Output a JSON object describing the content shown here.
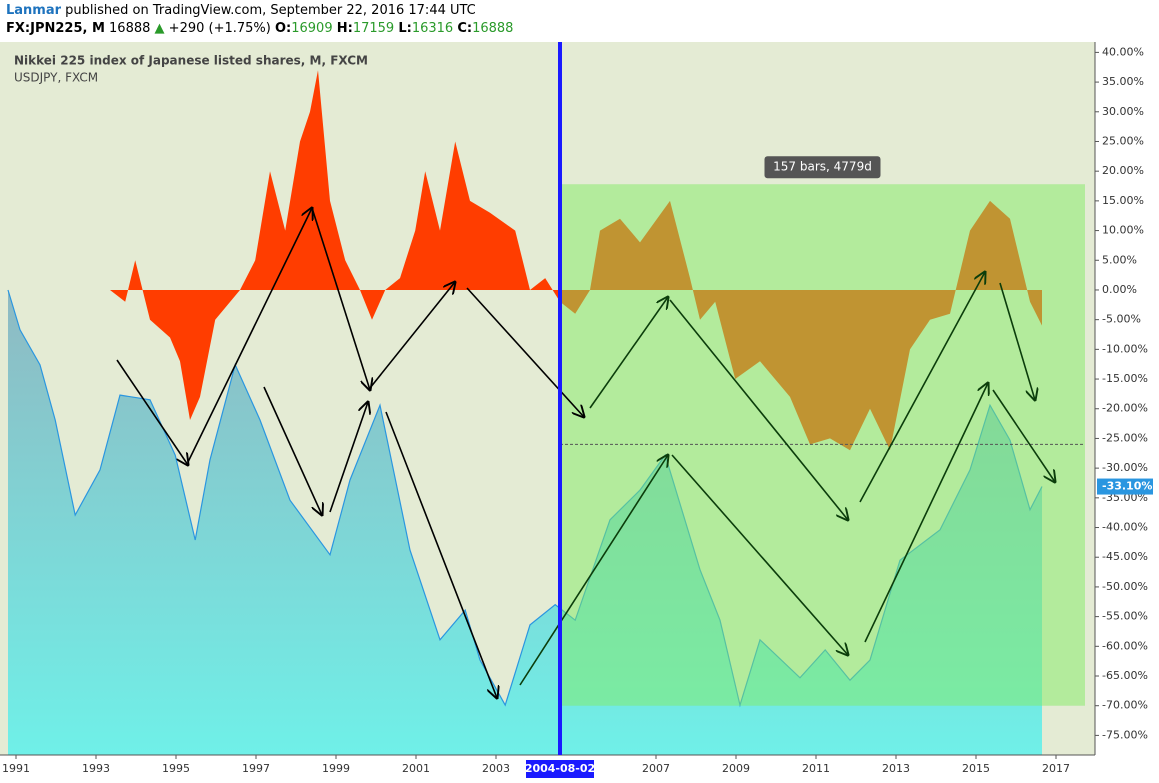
{
  "header": {
    "author": "Lanmar",
    "published": " published on TradingView.com, September 22, 2016 17:44 UTC",
    "symbol": "FX:JPN225, M",
    "last": "16888",
    "change": "+290 (+1.75%)",
    "open_label": "O:",
    "open": "16909",
    "high_label": "H:",
    "high": "17159",
    "low_label": "L:",
    "low": "16316",
    "close_label": "C:",
    "close": "16888"
  },
  "chart_data": {
    "type": "area",
    "xlim": [
      1990.6,
      2017.975
    ],
    "ylim": [
      -78.3,
      41.75
    ],
    "xticks": [
      1991,
      1993,
      1995,
      1997,
      1999,
      2001,
      2003,
      2007,
      2009,
      2011,
      2013,
      2015,
      2017
    ],
    "yticks": [
      {
        "value": 40,
        "label": "40.00%"
      },
      {
        "value": 35,
        "label": "35.00%"
      },
      {
        "value": 30,
        "label": "30.00%"
      },
      {
        "value": 25,
        "label": "25.00%"
      },
      {
        "value": 20,
        "label": "20.00%"
      },
      {
        "value": 15,
        "label": "15.00%"
      },
      {
        "value": 10,
        "label": "10.00%"
      },
      {
        "value": 5,
        "label": "5.00%"
      },
      {
        "value": 0,
        "label": "0.00%"
      },
      {
        "value": -5,
        "label": "-5.00%"
      },
      {
        "value": -10,
        "label": "-10.00%"
      },
      {
        "value": -15,
        "label": "-15.00%"
      },
      {
        "value": -20,
        "label": "-20.00%"
      },
      {
        "value": -25,
        "label": "-25.00%"
      },
      {
        "value": -30,
        "label": "-30.00%"
      },
      {
        "value": -35,
        "label": "-35.00%"
      },
      {
        "value": -40,
        "label": "-40.00%"
      },
      {
        "value": -45,
        "label": "-45.00%"
      },
      {
        "value": -50,
        "label": "-50.00%"
      },
      {
        "value": -55,
        "label": "-55.00%"
      },
      {
        "value": -60,
        "label": "-60.00%"
      },
      {
        "value": -65,
        "label": "-65.00%"
      },
      {
        "value": -70,
        "label": "-70.00%"
      },
      {
        "value": -75,
        "label": "-75.00%"
      }
    ],
    "series": [
      {
        "name": "Nikkei 225 index of Japanese listed shares, M, FXCM",
        "color": "#2a96e0",
        "x": [
          1990.8,
          1991.1,
          1991.6,
          1991.98,
          1992.48,
          1993.1,
          1993.6,
          1994.35,
          1994.98,
          1995.48,
          1995.85,
          1996.48,
          1997.1,
          1997.85,
          1998.85,
          1999.35,
          2000.1,
          2000.85,
          2001.6,
          2002.23,
          2002.6,
          2003.23,
          2003.85,
          2004.48,
          2004.98,
          2005.85,
          2006.6,
          2007.23,
          2008.1,
          2008.6,
          2009.1,
          2009.6,
          2010.6,
          2011.23,
          2011.85,
          2012.35,
          2013.1,
          2014.1,
          2014.85,
          2015.35,
          2015.85,
          2016.35,
          2016.65
        ],
        "values": [
          0,
          -6.7,
          -12.6,
          -21.9,
          -37.9,
          -30.3,
          -17.7,
          -18.5,
          -27.8,
          -42.1,
          -28.6,
          -12.6,
          -21.9,
          -35.4,
          -44.6,
          -32,
          -19.4,
          -43.8,
          -58.9,
          -53.9,
          -62.3,
          -69.9,
          -56.4,
          -53,
          -55.6,
          -38.7,
          -33.7,
          -27.8,
          -47.1,
          -55.6,
          -69.9,
          -58.9,
          -65.3,
          -60.6,
          -65.7,
          -62.3,
          -45.5,
          -40.4,
          -30.3,
          -19.4,
          -25.3,
          -37,
          -33.1
        ]
      },
      {
        "name": "USDJPY, FXCM",
        "color": "#ff3d00",
        "x": [
          1993.35,
          1993.73,
          1993.98,
          1994.35,
          1994.85,
          1995.1,
          1995.35,
          1995.6,
          1995.98,
          1996.6,
          1996.98,
          1997.35,
          1997.73,
          1998.1,
          1998.35,
          1998.55,
          1998.85,
          1999.23,
          1999.6,
          1999.9,
          2000.23,
          2000.6,
          2000.98,
          2001.23,
          2001.6,
          2001.98,
          2002.35,
          2002.85,
          2003.48,
          2003.85,
          2004.23,
          2004.6,
          2004.98,
          2005.35,
          2005.6,
          2006.1,
          2006.6,
          2007.35,
          2007.85,
          2008.1,
          2008.48,
          2008.98,
          2009.6,
          2010.35,
          2010.85,
          2011.35,
          2011.85,
          2012.35,
          2012.85,
          2013.35,
          2013.85,
          2014.35,
          2014.85,
          2015.35,
          2015.85,
          2016.1,
          2016.35,
          2016.65
        ],
        "values": [
          0,
          -2,
          5,
          -5,
          -8,
          -12,
          -21.9,
          -18,
          -5,
          0,
          5,
          20,
          10,
          25,
          30,
          37,
          15,
          5,
          0,
          -5,
          0,
          2,
          10,
          20,
          10,
          25,
          15,
          13,
          10,
          0,
          2,
          -2,
          -4,
          0,
          10,
          12,
          8,
          15,
          2,
          -5,
          -2,
          -15,
          -12,
          -18,
          -26,
          -25,
          -27,
          -20,
          -27,
          -10,
          -5,
          -4,
          10,
          15,
          12,
          5,
          -2,
          -6
        ]
      }
    ],
    "last_value_label": "-33.10%",
    "marker": {
      "x": 2004.6,
      "label": "2004-08-02",
      "color": "#1a1aff"
    },
    "range": {
      "start": 2004.6,
      "end": 2017.725,
      "top": 17.8,
      "bottom": -70,
      "level": -26,
      "label": "157 bars, 4779d"
    }
  }
}
